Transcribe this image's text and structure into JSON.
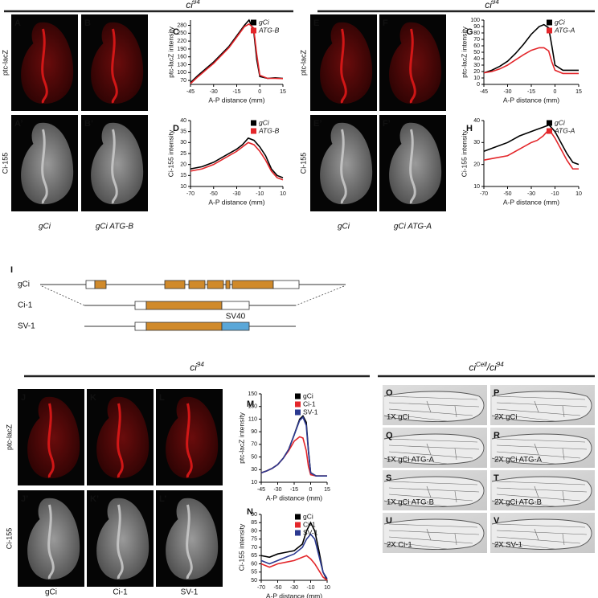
{
  "headers": [
    {
      "segments": [
        {
          "text": "ci"
        },
        {
          "text": "94",
          "sup": true
        }
      ]
    },
    {
      "segments": [
        {
          "text": "ci"
        },
        {
          "text": "94",
          "sup": true
        }
      ]
    },
    {
      "segments": [
        {
          "text": "ci"
        },
        {
          "text": "94",
          "sup": true
        }
      ]
    },
    {
      "segments": [
        {
          "text": "ci"
        },
        {
          "text": "Cell",
          "sup": true
        },
        {
          "text": "/ci"
        },
        {
          "text": "94",
          "sup": true
        }
      ]
    }
  ],
  "image_groups": [
    {
      "row_labels": [
        "ptc-lacZ",
        "Ci-155"
      ],
      "row_colors": [
        "#d42020",
        "#111111"
      ],
      "panels": [
        [
          "A",
          "B"
        ],
        [
          "A’",
          "B’"
        ]
      ],
      "captions": [
        "gCi",
        "gCi ATG-B"
      ],
      "italic": true
    },
    {
      "row_labels": [
        "ptc-lacZ",
        "Ci-155"
      ],
      "row_colors": [
        "#d42020",
        "#111111"
      ],
      "panels": [
        [
          "E",
          "F"
        ],
        [
          "E’",
          "F’"
        ]
      ],
      "captions": [
        "gCi",
        "gCi ATG-A"
      ],
      "italic": true
    },
    {
      "row_labels": [
        "ptc-lacZ",
        "Ci-155"
      ],
      "row_colors": [
        "#d42020",
        "#111111"
      ],
      "panels": [
        [
          "J",
          "K",
          "L"
        ],
        [
          "J’",
          "K’",
          "L’"
        ]
      ],
      "captions": [
        "gCi",
        "Ci-1",
        "SV-1"
      ],
      "italic": false
    }
  ],
  "diagram": {
    "panel": "I",
    "rows": [
      "gCi",
      "Ci-1",
      "SV-1"
    ],
    "insert": "SV40"
  },
  "wings": [
    {
      "panel": "O",
      "label": "1X gCi"
    },
    {
      "panel": "P",
      "label": "2X gCi"
    },
    {
      "panel": "Q",
      "label": "1X gCi ATG-A"
    },
    {
      "panel": "R",
      "label": "2X gCi ATG-A"
    },
    {
      "panel": "S",
      "label": "1X gCi ATG-B"
    },
    {
      "panel": "T",
      "label": "2X gCi ATG-B"
    },
    {
      "panel": "U",
      "label": "2X Ci-1"
    },
    {
      "panel": "V",
      "label": "2X SV-1"
    }
  ],
  "chart_data": [
    {
      "type": "line",
      "panel": "C",
      "xlabel": "A-P distance (mm)",
      "ylabel": "ptc-lacZ intensity",
      "legend": "upper right",
      "italic_names": true,
      "x": [
        -45,
        -40,
        -35,
        -30,
        -25,
        -20,
        -15,
        -10,
        -7,
        -4,
        -2,
        0,
        5,
        10,
        15
      ],
      "series": [
        {
          "name": "gCi",
          "color": "#000000",
          "values": [
            62,
            90,
            115,
            140,
            170,
            200,
            240,
            280,
            300,
            260,
            150,
            85,
            78,
            80,
            78
          ]
        },
        {
          "name": "ATG-B",
          "color": "#e3262a",
          "values": [
            58,
            85,
            110,
            135,
            165,
            195,
            235,
            275,
            285,
            270,
            170,
            90,
            78,
            78,
            77
          ]
        }
      ],
      "xlim": [
        -45,
        15
      ],
      "xticks": [
        -45,
        -30,
        -15,
        0,
        15
      ],
      "ylim": [
        55,
        300
      ],
      "yticks": [
        70,
        100,
        130,
        160,
        190,
        220,
        250,
        280
      ]
    },
    {
      "type": "line",
      "panel": "D",
      "xlabel": "A-P distance (mm)",
      "ylabel": "Ci-155 intensity",
      "legend": "upper right",
      "italic_names": true,
      "x": [
        -70,
        -60,
        -50,
        -40,
        -30,
        -25,
        -20,
        -15,
        -10,
        -5,
        0,
        5,
        10
      ],
      "series": [
        {
          "name": "gCi",
          "color": "#000000",
          "values": [
            18,
            19,
            21,
            24,
            27,
            29,
            32,
            31,
            28,
            24,
            18,
            15,
            14
          ]
        },
        {
          "name": "ATG-B",
          "color": "#e3262a",
          "values": [
            17,
            18,
            20,
            23,
            26,
            28,
            30,
            29,
            26,
            22,
            17,
            14,
            13
          ]
        }
      ],
      "xlim": [
        -70,
        10
      ],
      "xticks": [
        -70,
        -50,
        -30,
        -10,
        10
      ],
      "ylim": [
        10,
        40
      ],
      "yticks": [
        10,
        15,
        20,
        25,
        30,
        35,
        40
      ]
    },
    {
      "type": "line",
      "panel": "G",
      "xlabel": "A-P distance (mm)",
      "ylabel": "ptc-lacZ intensity",
      "legend": "upper right",
      "italic_names": true,
      "x": [
        -45,
        -40,
        -35,
        -30,
        -25,
        -20,
        -15,
        -10,
        -7,
        -4,
        -2,
        0,
        5,
        10,
        15
      ],
      "series": [
        {
          "name": "gCi",
          "color": "#000000",
          "values": [
            18,
            22,
            28,
            36,
            48,
            62,
            78,
            90,
            93,
            88,
            60,
            30,
            22,
            22,
            22
          ]
        },
        {
          "name": "ATG-A",
          "color": "#e3262a",
          "values": [
            18,
            20,
            24,
            30,
            38,
            46,
            53,
            57,
            57,
            52,
            35,
            22,
            17,
            17,
            17
          ]
        }
      ],
      "xlim": [
        -45,
        15
      ],
      "xticks": [
        -45,
        -30,
        -15,
        0,
        15
      ],
      "ylim": [
        0,
        100
      ],
      "yticks": [
        0,
        10,
        20,
        30,
        40,
        50,
        60,
        70,
        80,
        90,
        100
      ]
    },
    {
      "type": "line",
      "panel": "H",
      "xlabel": "A-P distance (mm)",
      "ylabel": "Ci-155 intensity",
      "legend": "upper right",
      "italic_names": true,
      "x": [
        -70,
        -60,
        -50,
        -40,
        -30,
        -25,
        -20,
        -15,
        -10,
        -5,
        0,
        5,
        10
      ],
      "series": [
        {
          "name": "gCi",
          "color": "#000000",
          "values": [
            26,
            28,
            30,
            33,
            35,
            36,
            37,
            38,
            35,
            30,
            25,
            21,
            20
          ]
        },
        {
          "name": "ATG-A",
          "color": "#e3262a",
          "values": [
            22,
            23,
            24,
            27,
            30,
            31,
            33,
            36,
            32,
            27,
            22,
            18,
            18
          ]
        }
      ],
      "xlim": [
        -70,
        10
      ],
      "xticks": [
        -70,
        -50,
        -30,
        -10,
        10
      ],
      "ylim": [
        10,
        40
      ],
      "yticks": [
        10,
        20,
        30,
        40
      ]
    },
    {
      "type": "line",
      "panel": "M",
      "xlabel": "A-P distance (mm)",
      "ylabel": "ptc-lacZ intensity",
      "legend": "upper right",
      "italic_names": false,
      "x": [
        -45,
        -40,
        -35,
        -30,
        -25,
        -20,
        -15,
        -10,
        -7,
        -4,
        -2,
        0,
        5,
        10,
        15
      ],
      "series": [
        {
          "name": "gCi",
          "color": "#000000",
          "values": [
            25,
            28,
            32,
            38,
            48,
            62,
            85,
            110,
            115,
            105,
            60,
            25,
            20,
            20,
            20
          ]
        },
        {
          "name": "Ci-1",
          "color": "#e3262a",
          "values": [
            25,
            28,
            32,
            38,
            48,
            60,
            75,
            82,
            80,
            60,
            35,
            22,
            20,
            20,
            20
          ]
        },
        {
          "name": "SV-1",
          "color": "#2b3990",
          "values": [
            25,
            28,
            32,
            38,
            48,
            62,
            85,
            108,
            113,
            100,
            58,
            25,
            20,
            20,
            20
          ]
        }
      ],
      "xlim": [
        -45,
        15
      ],
      "xticks": [
        -45,
        -30,
        -15,
        0,
        15
      ],
      "ylim": [
        10,
        150
      ],
      "yticks": [
        10,
        30,
        50,
        70,
        90,
        110,
        130,
        150
      ]
    },
    {
      "type": "line",
      "panel": "N",
      "xlabel": "A-P distance (mm)",
      "ylabel": "Ci-155 intensity",
      "legend": "upper right",
      "italic_names": false,
      "x": [
        -70,
        -60,
        -50,
        -40,
        -30,
        -20,
        -15,
        -10,
        -5,
        0,
        5,
        10
      ],
      "series": [
        {
          "name": "gCi",
          "color": "#000000",
          "values": [
            65,
            64,
            66,
            67,
            68,
            72,
            80,
            85,
            80,
            68,
            55,
            50
          ]
        },
        {
          "name": "Ci-1",
          "color": "#e3262a",
          "values": [
            60,
            58,
            60,
            61,
            62,
            64,
            65,
            63,
            60,
            56,
            52,
            50
          ]
        },
        {
          "name": "SV-1",
          "color": "#2b3990",
          "values": [
            62,
            60,
            62,
            64,
            66,
            70,
            75,
            78,
            75,
            65,
            55,
            51
          ]
        }
      ],
      "xlim": [
        -70,
        10
      ],
      "xticks": [
        -70,
        -50,
        -30,
        -10,
        10
      ],
      "ylim": [
        50,
        90
      ],
      "yticks": [
        50,
        55,
        60,
        65,
        70,
        75,
        80,
        85,
        90
      ]
    }
  ]
}
